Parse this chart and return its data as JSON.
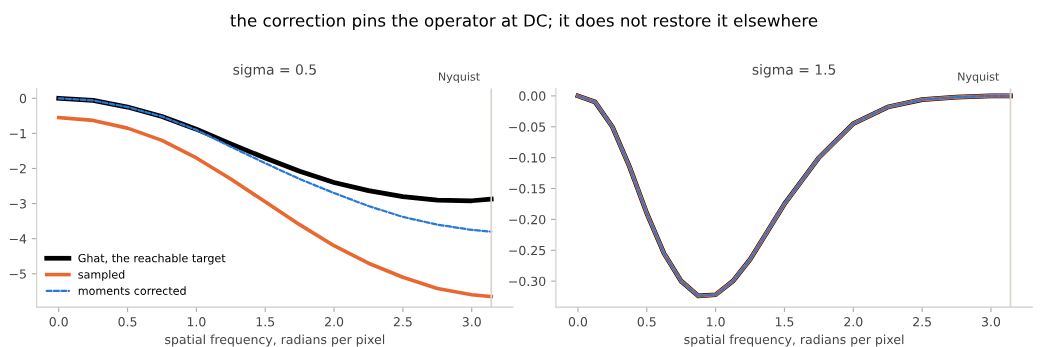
{
  "chart_data": [
    {
      "type": "line",
      "title": "sigma = 0.5",
      "xlabel": "spatial frequency, radians per pixel",
      "annotations": [
        "the correction pins the operator at DC; it does not restore it elsewhere"
      ],
      "x": [
        0,
        0.25,
        0.5,
        0.75,
        1.0,
        1.25,
        1.5,
        1.75,
        2.0,
        2.25,
        2.5,
        2.75,
        3.0,
        3.1416
      ],
      "series": [
        {
          "name": "Ghat, the reachable target",
          "color": "#000000",
          "line_style": "solid",
          "values": [
            0,
            -0.06,
            -0.25,
            -0.52,
            -0.88,
            -1.3,
            -1.7,
            -2.08,
            -2.4,
            -2.63,
            -2.8,
            -2.9,
            -2.92,
            -2.87
          ]
        },
        {
          "name": "sampled",
          "color": "#e8682f",
          "line_style": "solid",
          "values": [
            -0.55,
            -0.63,
            -0.85,
            -1.2,
            -1.7,
            -2.3,
            -2.95,
            -3.6,
            -4.2,
            -4.7,
            -5.1,
            -5.42,
            -5.6,
            -5.65
          ]
        },
        {
          "name": "moments corrected",
          "color": "#2a78d6",
          "line_style": "dashed",
          "values": [
            0,
            -0.06,
            -0.25,
            -0.52,
            -0.9,
            -1.38,
            -1.85,
            -2.3,
            -2.7,
            -3.07,
            -3.38,
            -3.6,
            -3.75,
            -3.8
          ]
        }
      ],
      "xlim": [
        -0.16,
        3.3
      ],
      "xticks": [
        {
          "value": 0,
          "label": "0.0"
        },
        0.5,
        {
          "value": 1,
          "label": "1.0"
        },
        1.5,
        {
          "value": 2,
          "label": "2.0"
        },
        2.5,
        {
          "value": 3,
          "label": "3.0"
        }
      ],
      "ylim": [
        -5.95,
        0.28
      ],
      "yticks": [
        -5,
        -4,
        -3,
        -2,
        -1,
        0
      ],
      "ref_lines": [
        {
          "axis": "x",
          "value": 3.1416,
          "label": "Nyquist",
          "color": "#d9d4cc"
        }
      ],
      "legend": "bottom left",
      "grid": false
    },
    {
      "type": "line",
      "title": "sigma = 1.5",
      "xlabel": "spatial frequency, radians per pixel",
      "x": [
        0,
        0.125,
        0.25,
        0.375,
        0.5,
        0.625,
        0.75,
        0.875,
        1.0,
        1.125,
        1.25,
        1.375,
        1.5,
        1.75,
        2.0,
        2.25,
        2.5,
        2.75,
        3.0,
        3.1416
      ],
      "series": [
        {
          "color": "#000000",
          "line_style": "solid",
          "values": [
            0,
            -0.01,
            -0.05,
            -0.115,
            -0.19,
            -0.255,
            -0.3,
            -0.324,
            -0.322,
            -0.3,
            -0.265,
            -0.22,
            -0.175,
            -0.1,
            -0.045,
            -0.018,
            -0.006,
            -0.002,
            0,
            0
          ]
        },
        {
          "color": "#e8682f",
          "line_style": "solid",
          "values": [
            0,
            -0.01,
            -0.05,
            -0.115,
            -0.19,
            -0.255,
            -0.3,
            -0.324,
            -0.322,
            -0.3,
            -0.265,
            -0.22,
            -0.175,
            -0.1,
            -0.045,
            -0.018,
            -0.006,
            -0.002,
            0,
            0
          ]
        },
        {
          "color": "#2a78d6",
          "line_style": "dashed",
          "values": [
            0,
            -0.01,
            -0.05,
            -0.115,
            -0.19,
            -0.255,
            -0.3,
            -0.324,
            -0.322,
            -0.3,
            -0.265,
            -0.22,
            -0.175,
            -0.1,
            -0.045,
            -0.018,
            -0.006,
            -0.002,
            0,
            0
          ]
        }
      ],
      "xlim": [
        -0.16,
        3.3
      ],
      "xticks": [
        {
          "value": 0,
          "label": "0.0"
        },
        0.5,
        {
          "value": 1,
          "label": "1.0"
        },
        1.5,
        {
          "value": 2,
          "label": "2.0"
        },
        2.5,
        {
          "value": 3,
          "label": "3.0"
        }
      ],
      "ylim": [
        -0.342,
        0.012
      ],
      "yticks": [
        {
          "value": -0.3,
          "label": "−0.30"
        },
        {
          "value": -0.25,
          "label": "−0.25"
        },
        {
          "value": -0.2,
          "label": "−0.20"
        },
        {
          "value": -0.15,
          "label": "−0.15"
        },
        {
          "value": -0.1,
          "label": "−0.10"
        },
        {
          "value": -0.05,
          "label": "−0.05"
        },
        {
          "value": 0,
          "label": "0.00"
        }
      ],
      "ref_lines": [
        {
          "axis": "x",
          "value": 3.1416,
          "label": "Nyquist",
          "color": "#d9d4cc"
        }
      ],
      "grid": false
    }
  ]
}
